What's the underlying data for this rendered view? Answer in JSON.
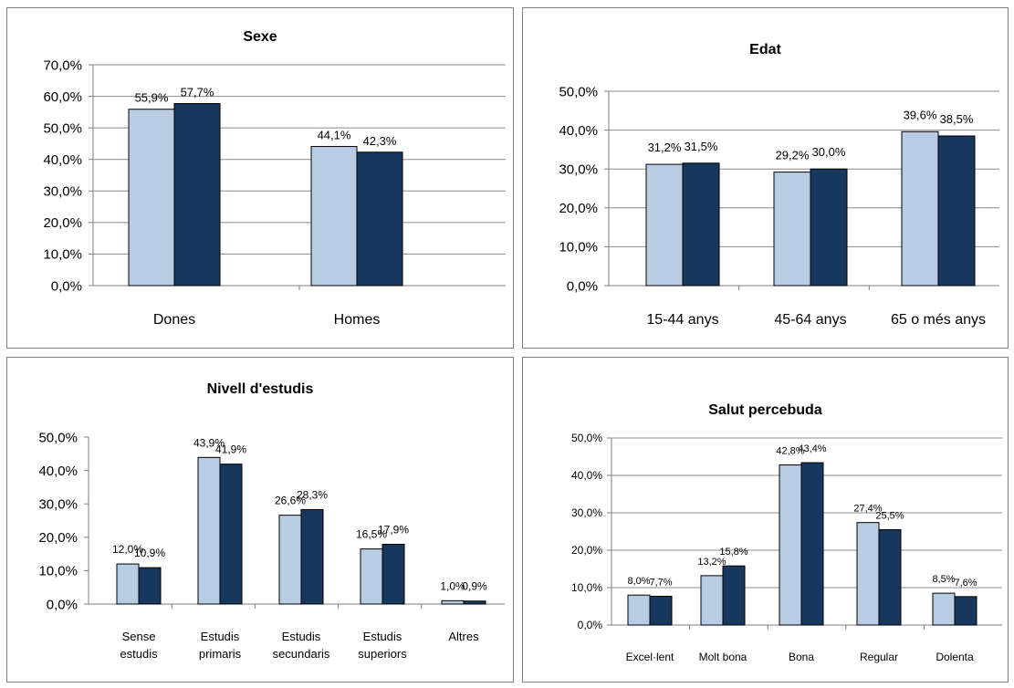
{
  "chart_data": [
    {
      "type": "bar",
      "title": "Sexe",
      "categories": [
        [
          "Dones"
        ],
        [
          "Homes"
        ]
      ],
      "series": [
        {
          "values": [
            55.9,
            44.1
          ],
          "labels": [
            "55,9%",
            "44,1%"
          ],
          "color": "#b8cce4"
        },
        {
          "values": [
            57.7,
            42.3
          ],
          "labels": [
            "57,7%",
            "42,3%"
          ],
          "color": "#17375e"
        }
      ],
      "yticks": [
        "0,0%",
        "10,0%",
        "20,0%",
        "30,0%",
        "40,0%",
        "50,0%",
        "60,0%",
        "70,0%"
      ],
      "ylim": [
        0,
        70
      ],
      "grid": true
    },
    {
      "type": "bar",
      "title": "Edat",
      "categories": [
        [
          "15-44 anys"
        ],
        [
          "45-64 anys"
        ],
        [
          "65 o més anys"
        ]
      ],
      "series": [
        {
          "values": [
            31.2,
            29.2,
            39.6
          ],
          "labels": [
            "31,2%",
            "29,2%",
            "39,6%"
          ],
          "color": "#b8cce4"
        },
        {
          "values": [
            31.5,
            30.0,
            38.5
          ],
          "labels": [
            "31,5%",
            "30,0%",
            "38,5%"
          ],
          "color": "#17375e"
        }
      ],
      "yticks": [
        "0,0%",
        "10,0%",
        "20,0%",
        "30,0%",
        "40,0%",
        "50,0%"
      ],
      "ylim": [
        0,
        50
      ],
      "grid": true
    },
    {
      "type": "bar",
      "title": "Nivell d'estudis",
      "categories": [
        [
          "Sense",
          "estudis"
        ],
        [
          "Estudis",
          "primaris"
        ],
        [
          "Estudis",
          "secundaris"
        ],
        [
          "Estudis",
          "superiors"
        ],
        [
          "Altres"
        ]
      ],
      "series": [
        {
          "values": [
            12.0,
            43.9,
            26.6,
            16.5,
            1.0
          ],
          "labels": [
            "12,0%",
            "43,9%",
            "26,6%",
            "16,5%",
            "1,0%"
          ],
          "color": "#b8cce4"
        },
        {
          "values": [
            10.9,
            41.9,
            28.3,
            17.9,
            0.9
          ],
          "labels": [
            "10,9%",
            "41,9%",
            "28,3%",
            "17,9%",
            "0,9%"
          ],
          "color": "#17375e"
        }
      ],
      "yticks": [
        "0,0%",
        "10,0%",
        "20,0%",
        "30,0%",
        "40,0%",
        "50,0%"
      ],
      "ylim": [
        0,
        50
      ],
      "grid": false
    },
    {
      "type": "bar",
      "title": "Salut percebuda",
      "categories": [
        [
          "Excel·lent"
        ],
        [
          "Molt bona"
        ],
        [
          "Bona"
        ],
        [
          "Regular"
        ],
        [
          "Dolenta"
        ]
      ],
      "series": [
        {
          "values": [
            8.0,
            13.2,
            42.8,
            27.4,
            8.5
          ],
          "labels": [
            "8,0%",
            "13,2%",
            "42,8%",
            "27,4%",
            "8,5%"
          ],
          "color": "#b8cce4"
        },
        {
          "values": [
            7.7,
            15.8,
            43.4,
            25.5,
            7.6
          ],
          "labels": [
            "7,7%",
            "15,8%",
            "43,4%",
            "25,5%",
            "7,6%"
          ],
          "color": "#17375e"
        }
      ],
      "yticks": [
        "0,0%",
        "10,0%",
        "20,0%",
        "30,0%",
        "40,0%",
        "50,0%"
      ],
      "ylim": [
        0,
        50
      ],
      "grid": true
    }
  ]
}
